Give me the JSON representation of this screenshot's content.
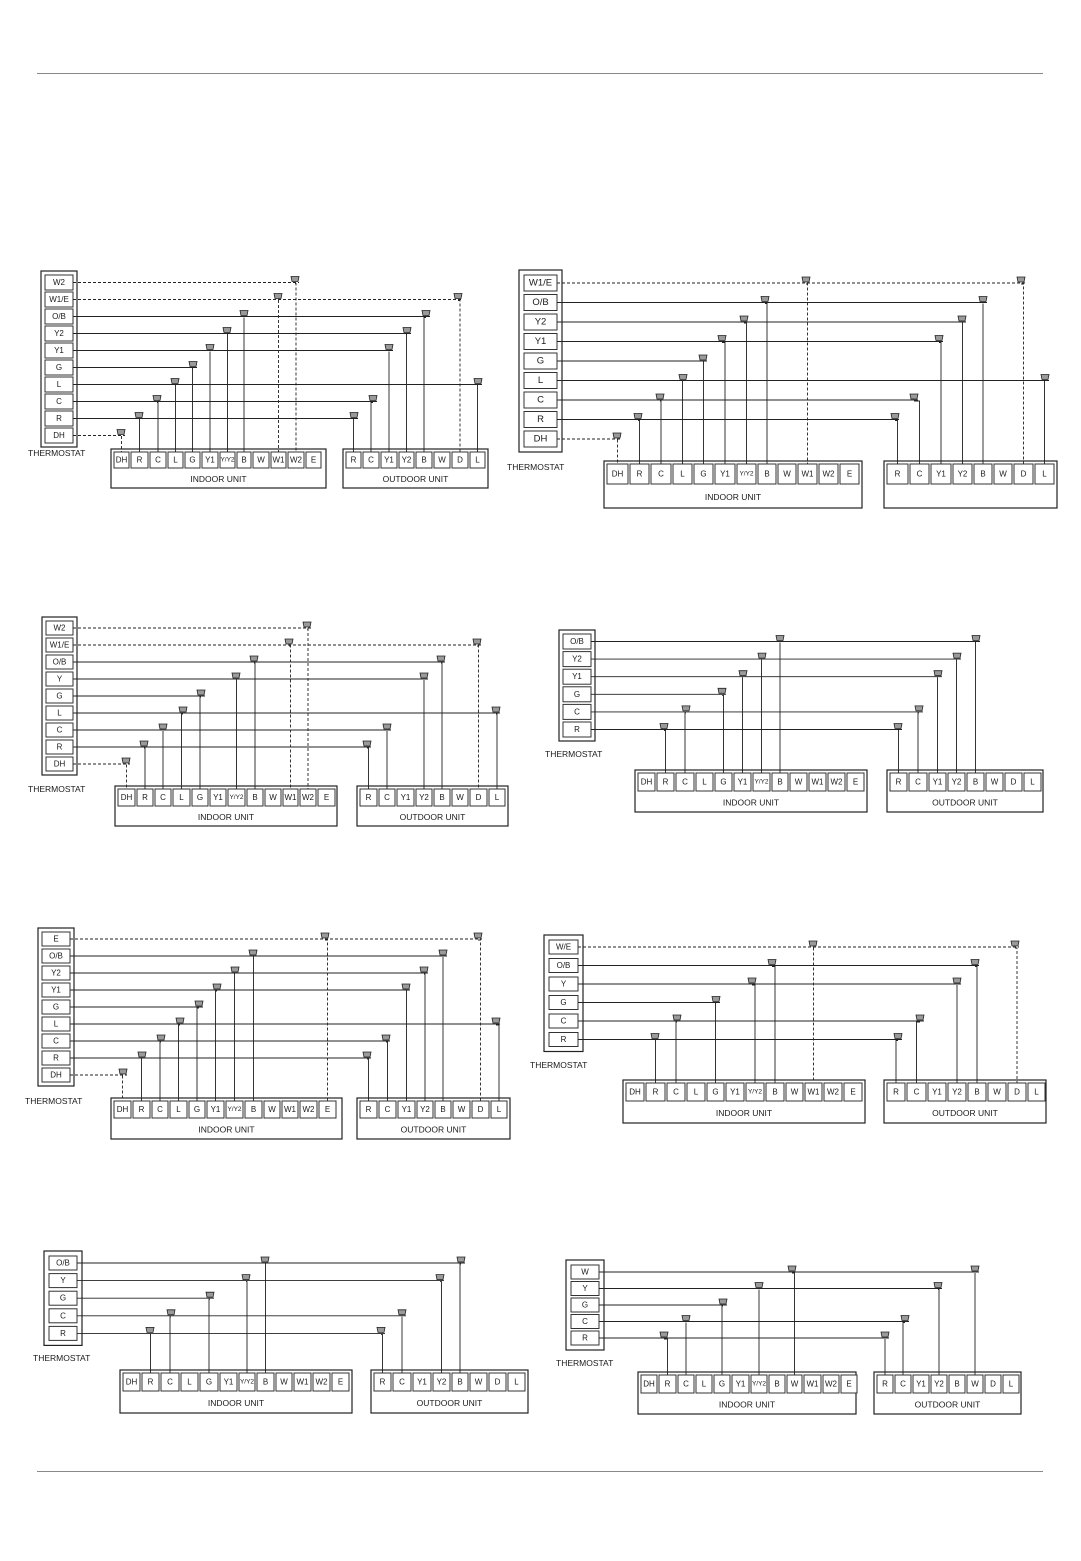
{
  "colors": {
    "wire": "#222222",
    "panel_border": "#222222",
    "terminal_border": "#333333",
    "connector_fill": "#9a9a9a",
    "rule": "#888888",
    "background": "#ffffff"
  },
  "icons": {
    "wire_connector": "wire-nut-icon"
  },
  "labels": {
    "thermostat": "THERMOSTAT",
    "indoor_unit": "INDOOR UNIT",
    "outdoor_unit": "OUTDOOR UNIT"
  },
  "diagrams": [
    {
      "id": "d1",
      "thermostat_terminals": [
        "W2",
        "W1/E",
        "O/B",
        "Y2",
        "Y1",
        "G",
        "L",
        "C",
        "R",
        "DH"
      ],
      "indoor_terminals": [
        "DH",
        "R",
        "C",
        "L",
        "G",
        "Y1",
        "Y/Y2",
        "B",
        "W",
        "W1",
        "W2",
        "E"
      ],
      "outdoor_terminals": [
        "R",
        "C",
        "Y1",
        "Y2",
        "B",
        "W",
        "D",
        "L"
      ],
      "outdoor_label": true,
      "connections": [
        {
          "from": "W2",
          "indoor": "W2",
          "dashed": true
        },
        {
          "from": "W1/E",
          "indoor": "W1",
          "outdoor": "D",
          "dashed": true
        },
        {
          "from": "O/B",
          "indoor": "B",
          "outdoor": "B"
        },
        {
          "from": "Y2",
          "indoor": "Y/Y2",
          "outdoor": "Y2"
        },
        {
          "from": "Y1",
          "indoor": "Y1",
          "outdoor": "Y1"
        },
        {
          "from": "G",
          "indoor": "G"
        },
        {
          "from": "L",
          "indoor": "L",
          "outdoor": "L"
        },
        {
          "from": "C",
          "indoor": "C",
          "outdoor": "C"
        },
        {
          "from": "R",
          "indoor": "R",
          "outdoor": "R"
        },
        {
          "from": "DH",
          "indoor": "DH",
          "dashed": true
        }
      ]
    },
    {
      "id": "d2",
      "thermostat_terminals": [
        "W1/E",
        "O/B",
        "Y2",
        "Y1",
        "G",
        "L",
        "C",
        "R",
        "DH"
      ],
      "indoor_terminals": [
        "DH",
        "R",
        "C",
        "L",
        "G",
        "Y1",
        "Y/Y2",
        "B",
        "W",
        "W1",
        "W2",
        "E"
      ],
      "outdoor_terminals": [
        "R",
        "C",
        "Y1",
        "Y2",
        "B",
        "W",
        "D",
        "L"
      ],
      "outdoor_label": false,
      "connections": [
        {
          "from": "W1/E",
          "indoor": "W1",
          "outdoor": "D",
          "dashed": true
        },
        {
          "from": "O/B",
          "indoor": "B",
          "outdoor": "B"
        },
        {
          "from": "Y2",
          "indoor": "Y/Y2",
          "outdoor": "Y2"
        },
        {
          "from": "Y1",
          "indoor": "Y1",
          "outdoor": "Y1"
        },
        {
          "from": "G",
          "indoor": "G"
        },
        {
          "from": "L",
          "indoor": "L",
          "outdoor": "L"
        },
        {
          "from": "C",
          "indoor": "C",
          "outdoor": "C"
        },
        {
          "from": "R",
          "indoor": "R",
          "outdoor": "R"
        },
        {
          "from": "DH",
          "indoor": "DH",
          "dashed": true
        }
      ]
    },
    {
      "id": "d3",
      "thermostat_terminals": [
        "W2",
        "W1/E",
        "O/B",
        "Y",
        "G",
        "L",
        "C",
        "R",
        "DH"
      ],
      "indoor_terminals": [
        "DH",
        "R",
        "C",
        "L",
        "G",
        "Y1",
        "Y/Y2",
        "B",
        "W",
        "W1",
        "W2",
        "E"
      ],
      "outdoor_terminals": [
        "R",
        "C",
        "Y1",
        "Y2",
        "B",
        "W",
        "D",
        "L"
      ],
      "outdoor_label": true,
      "connections": [
        {
          "from": "W2",
          "indoor": "W2",
          "dashed": true
        },
        {
          "from": "W1/E",
          "indoor": "W1",
          "outdoor": "D",
          "dashed": true
        },
        {
          "from": "O/B",
          "indoor": "B",
          "outdoor": "B"
        },
        {
          "from": "Y",
          "indoor": "Y/Y2",
          "outdoor": "Y2"
        },
        {
          "from": "G",
          "indoor": "G"
        },
        {
          "from": "L",
          "indoor": "L",
          "outdoor": "L"
        },
        {
          "from": "C",
          "indoor": "C",
          "outdoor": "C"
        },
        {
          "from": "R",
          "indoor": "R",
          "outdoor": "R"
        },
        {
          "from": "DH",
          "indoor": "DH",
          "dashed": true
        }
      ]
    },
    {
      "id": "d4",
      "thermostat_terminals": [
        "O/B",
        "Y2",
        "Y1",
        "G",
        "C",
        "R"
      ],
      "indoor_terminals": [
        "DH",
        "R",
        "C",
        "L",
        "G",
        "Y1",
        "Y/Y2",
        "B",
        "W",
        "W1",
        "W2",
        "E"
      ],
      "outdoor_terminals": [
        "R",
        "C",
        "Y1",
        "Y2",
        "B",
        "W",
        "D",
        "L"
      ],
      "outdoor_label": true,
      "connections": [
        {
          "from": "O/B",
          "indoor": "B",
          "outdoor": "B"
        },
        {
          "from": "Y2",
          "indoor": "Y/Y2",
          "outdoor": "Y2"
        },
        {
          "from": "Y1",
          "indoor": "Y1",
          "outdoor": "Y1"
        },
        {
          "from": "G",
          "indoor": "G"
        },
        {
          "from": "C",
          "indoor": "C",
          "outdoor": "C"
        },
        {
          "from": "R",
          "indoor": "R",
          "outdoor": "R"
        }
      ]
    },
    {
      "id": "d5",
      "thermostat_terminals": [
        "E",
        "O/B",
        "Y2",
        "Y1",
        "G",
        "L",
        "C",
        "R",
        "DH"
      ],
      "indoor_terminals": [
        "DH",
        "R",
        "C",
        "L",
        "G",
        "Y1",
        "Y/Y2",
        "B",
        "W",
        "W1",
        "W2",
        "E"
      ],
      "outdoor_terminals": [
        "R",
        "C",
        "Y1",
        "Y2",
        "B",
        "W",
        "D",
        "L"
      ],
      "outdoor_label": true,
      "connections": [
        {
          "from": "E",
          "indoor": "E",
          "outdoor": "D",
          "dashed": true
        },
        {
          "from": "O/B",
          "indoor": "B",
          "outdoor": "B"
        },
        {
          "from": "Y2",
          "indoor": "Y/Y2",
          "outdoor": "Y2"
        },
        {
          "from": "Y1",
          "indoor": "Y1",
          "outdoor": "Y1"
        },
        {
          "from": "G",
          "indoor": "G"
        },
        {
          "from": "L",
          "indoor": "L",
          "outdoor": "L"
        },
        {
          "from": "C",
          "indoor": "C",
          "outdoor": "C"
        },
        {
          "from": "R",
          "indoor": "R",
          "outdoor": "R"
        },
        {
          "from": "DH",
          "indoor": "DH",
          "dashed": true
        }
      ]
    },
    {
      "id": "d6",
      "thermostat_terminals": [
        "W/E",
        "O/B",
        "Y",
        "G",
        "C",
        "R"
      ],
      "indoor_terminals": [
        "DH",
        "R",
        "C",
        "L",
        "G",
        "Y1",
        "Y/Y2",
        "B",
        "W",
        "W1",
        "W2",
        "E"
      ],
      "outdoor_terminals": [
        "R",
        "C",
        "Y1",
        "Y2",
        "B",
        "W",
        "D",
        "L"
      ],
      "outdoor_label": true,
      "connections": [
        {
          "from": "W/E",
          "indoor": "W1",
          "outdoor": "D",
          "dashed": true
        },
        {
          "from": "O/B",
          "indoor": "B",
          "outdoor": "B"
        },
        {
          "from": "Y",
          "indoor": "Y/Y2",
          "outdoor": "Y2"
        },
        {
          "from": "G",
          "indoor": "G"
        },
        {
          "from": "C",
          "indoor": "C",
          "outdoor": "C"
        },
        {
          "from": "R",
          "indoor": "R",
          "outdoor": "R"
        }
      ]
    },
    {
      "id": "d7",
      "thermostat_terminals": [
        "O/B",
        "Y",
        "G",
        "C",
        "R"
      ],
      "indoor_terminals": [
        "DH",
        "R",
        "C",
        "L",
        "G",
        "Y1",
        "Y/Y2",
        "B",
        "W",
        "W1",
        "W2",
        "E"
      ],
      "outdoor_terminals": [
        "R",
        "C",
        "Y1",
        "Y2",
        "B",
        "W",
        "D",
        "L"
      ],
      "outdoor_label": true,
      "connections": [
        {
          "from": "O/B",
          "indoor": "B",
          "outdoor": "B"
        },
        {
          "from": "Y",
          "indoor": "Y/Y2",
          "outdoor": "Y2"
        },
        {
          "from": "G",
          "indoor": "G"
        },
        {
          "from": "C",
          "indoor": "C",
          "outdoor": "C"
        },
        {
          "from": "R",
          "indoor": "R",
          "outdoor": "R"
        }
      ]
    },
    {
      "id": "d8",
      "thermostat_terminals": [
        "W",
        "Y",
        "G",
        "C",
        "R"
      ],
      "indoor_terminals": [
        "DH",
        "R",
        "C",
        "L",
        "G",
        "Y1",
        "Y/Y2",
        "B",
        "W",
        "W1",
        "W2",
        "E"
      ],
      "outdoor_terminals": [
        "R",
        "C",
        "Y1",
        "Y2",
        "B",
        "W",
        "D",
        "L"
      ],
      "outdoor_label": true,
      "connections": [
        {
          "from": "W",
          "indoor": "W",
          "outdoor": "W"
        },
        {
          "from": "Y",
          "indoor": "Y/Y2",
          "outdoor": "Y2"
        },
        {
          "from": "G",
          "indoor": "G"
        },
        {
          "from": "C",
          "indoor": "C",
          "outdoor": "C"
        },
        {
          "from": "R",
          "indoor": "R",
          "outdoor": "R"
        }
      ]
    }
  ]
}
